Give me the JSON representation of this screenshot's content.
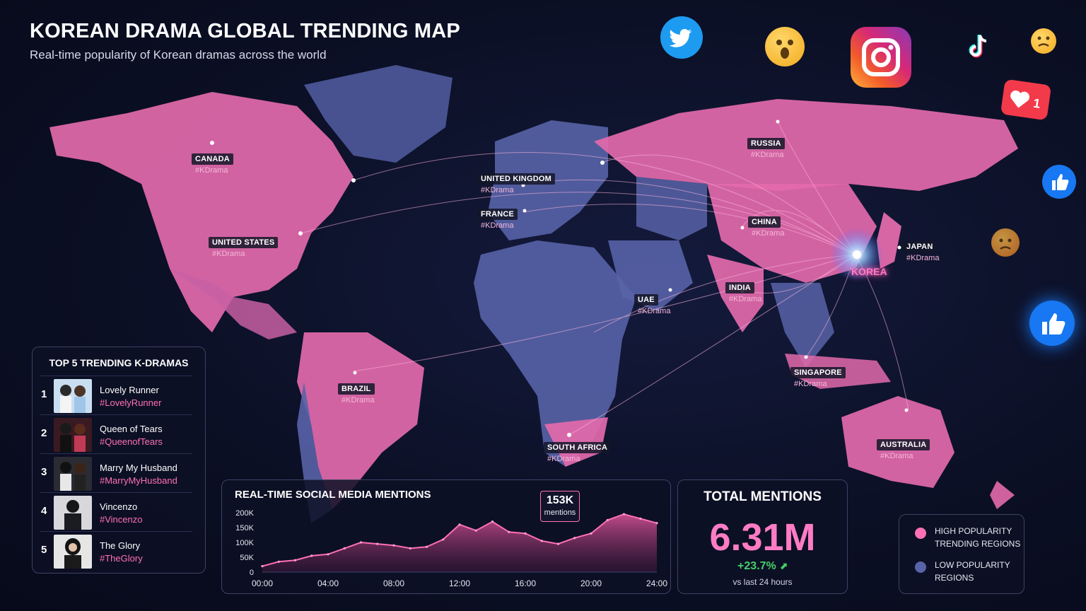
{
  "header": {
    "title": "KOREAN DRAMA GLOBAL TRENDING MAP",
    "subtitle": "Real-time popularity of Korean dramas across the world"
  },
  "colors": {
    "high": "#ff6fb8",
    "low": "#5863a8",
    "background": "#0b0f24",
    "positive": "#45d06a"
  },
  "map": {
    "hub_label": "KOREA",
    "regions": [
      {
        "country": "CANADA",
        "hashtag": "#KDrama"
      },
      {
        "country": "UNITED STATES",
        "hashtag": "#KDrama"
      },
      {
        "country": "UNITED KINGDOM",
        "hashtag": "#KDrama"
      },
      {
        "country": "FRANCE",
        "hashtag": "#KDrama"
      },
      {
        "country": "RUSSIA",
        "hashtag": "#KDrama"
      },
      {
        "country": "CHINA",
        "hashtag": "#KDrama"
      },
      {
        "country": "JAPAN",
        "hashtag": "#KDrama"
      },
      {
        "country": "INDIA",
        "hashtag": "#KDrama"
      },
      {
        "country": "UAE",
        "hashtag": "#KDrama"
      },
      {
        "country": "SINGAPORE",
        "hashtag": "#KDrama"
      },
      {
        "country": "BRAZIL",
        "hashtag": "#KDrama"
      },
      {
        "country": "SOUTH AFRICA",
        "hashtag": "#KDrama"
      },
      {
        "country": "AUSTRALIA",
        "hashtag": "#KDrama"
      }
    ]
  },
  "top5": {
    "title": "TOP 5 TRENDING K-DRAMAS",
    "items": [
      {
        "rank": "1",
        "name": "Lovely Runner",
        "hashtag": "#LovelyRunner"
      },
      {
        "rank": "2",
        "name": "Queen of Tears",
        "hashtag": "#QueenofTears"
      },
      {
        "rank": "3",
        "name": "Marry My Husband",
        "hashtag": "#MarryMyHusband"
      },
      {
        "rank": "4",
        "name": "Vincenzo",
        "hashtag": "#Vincenzo"
      },
      {
        "rank": "5",
        "name": "The Glory",
        "hashtag": "#TheGlory"
      }
    ]
  },
  "mentions": {
    "title": "REAL-TIME SOCIAL MEDIA MENTIONS",
    "callout_value": "153K",
    "callout_label": "mentions"
  },
  "chart_data": {
    "type": "area",
    "title": "REAL-TIME SOCIAL MEDIA MENTIONS",
    "x_tick_labels": [
      "00:00",
      "04:00",
      "08:00",
      "12:00",
      "16:00",
      "20:00",
      "24:00"
    ],
    "y_tick_labels": [
      "200K",
      "150K",
      "100K",
      "50K",
      "0"
    ],
    "xlim": [
      0,
      24
    ],
    "ylim": [
      0,
      200
    ],
    "grid": false,
    "x": [
      0,
      1,
      2,
      3,
      4,
      5,
      6,
      7,
      8,
      9,
      10,
      11,
      12,
      13,
      14,
      15,
      16,
      17,
      18,
      19,
      20,
      21,
      22,
      23,
      24
    ],
    "y": [
      20,
      35,
      40,
      55,
      60,
      80,
      100,
      95,
      90,
      80,
      85,
      110,
      160,
      140,
      170,
      135,
      130,
      105,
      95,
      115,
      130,
      175,
      195,
      180,
      165
    ]
  },
  "total": {
    "title": "TOTAL MENTIONS",
    "value": "6.31M",
    "change": "+23.7%",
    "note": "vs last 24 hours"
  },
  "legend": {
    "high_label": "HIGH POPULARITY TRENDING REGIONS",
    "low_label": "LOW POPULARITY REGIONS"
  },
  "social_icons": [
    "twitter-icon",
    "surprised-emoji-icon",
    "instagram-icon",
    "tiktok-icon",
    "emoji-icon",
    "like-notification-icon",
    "thumbs-up-icon",
    "angry-emoji-icon",
    "thumbs-up-icon"
  ]
}
